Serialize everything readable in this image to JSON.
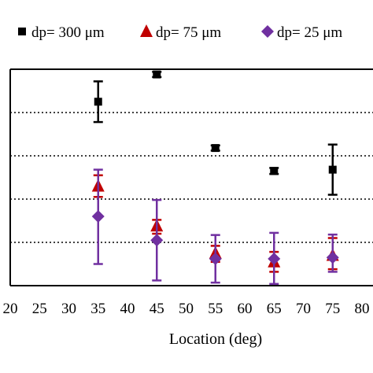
{
  "chart_data": {
    "type": "scatter",
    "title": "",
    "xlabel": "Location (deg)",
    "ylabel": "",
    "xlim": [
      20,
      80
    ],
    "xticks": [
      "20",
      "25",
      "30",
      "35",
      "40",
      "45",
      "50",
      "55",
      "60",
      "65",
      "70",
      "75",
      "80"
    ],
    "ylim": [
      0,
      5
    ],
    "grid": "horizontal dotted",
    "legend": "top",
    "series": [
      {
        "name": "dp= 300 μm",
        "marker": "square",
        "color": "#000000",
        "points": [
          {
            "x": 35,
            "y": 4.25,
            "lo": 3.78,
            "hi": 4.72
          },
          {
            "x": 45,
            "y": 4.88,
            "lo": 4.82,
            "hi": 4.94
          },
          {
            "x": 55,
            "y": 3.18,
            "lo": 3.12,
            "hi": 3.24
          },
          {
            "x": 65,
            "y": 2.65,
            "lo": 2.58,
            "hi": 2.72
          },
          {
            "x": 75,
            "y": 2.68,
            "lo": 2.1,
            "hi": 3.26
          }
        ]
      },
      {
        "name": "dp= 75 μm",
        "marker": "triangle",
        "color": "#c00000",
        "points": [
          {
            "x": 35,
            "y": 2.3,
            "lo": 2.05,
            "hi": 2.55
          },
          {
            "x": 45,
            "y": 1.38,
            "lo": 1.2,
            "hi": 1.52
          },
          {
            "x": 55,
            "y": 0.75,
            "lo": 0.55,
            "hi": 0.92
          },
          {
            "x": 65,
            "y": 0.55,
            "lo": 0.32,
            "hi": 0.78
          },
          {
            "x": 75,
            "y": 0.7,
            "lo": 0.38,
            "hi": 1.1
          }
        ]
      },
      {
        "name": "dp= 25 μm",
        "marker": "diamond",
        "color": "#7030a0",
        "points": [
          {
            "x": 35,
            "y": 1.6,
            "lo": 0.5,
            "hi": 2.68
          },
          {
            "x": 45,
            "y": 1.05,
            "lo": 0.12,
            "hi": 1.98
          },
          {
            "x": 55,
            "y": 0.62,
            "lo": 0.07,
            "hi": 1.17
          },
          {
            "x": 65,
            "y": 0.62,
            "lo": 0.04,
            "hi": 1.22
          },
          {
            "x": 75,
            "y": 0.65,
            "lo": 0.32,
            "hi": 1.18
          }
        ]
      }
    ]
  }
}
